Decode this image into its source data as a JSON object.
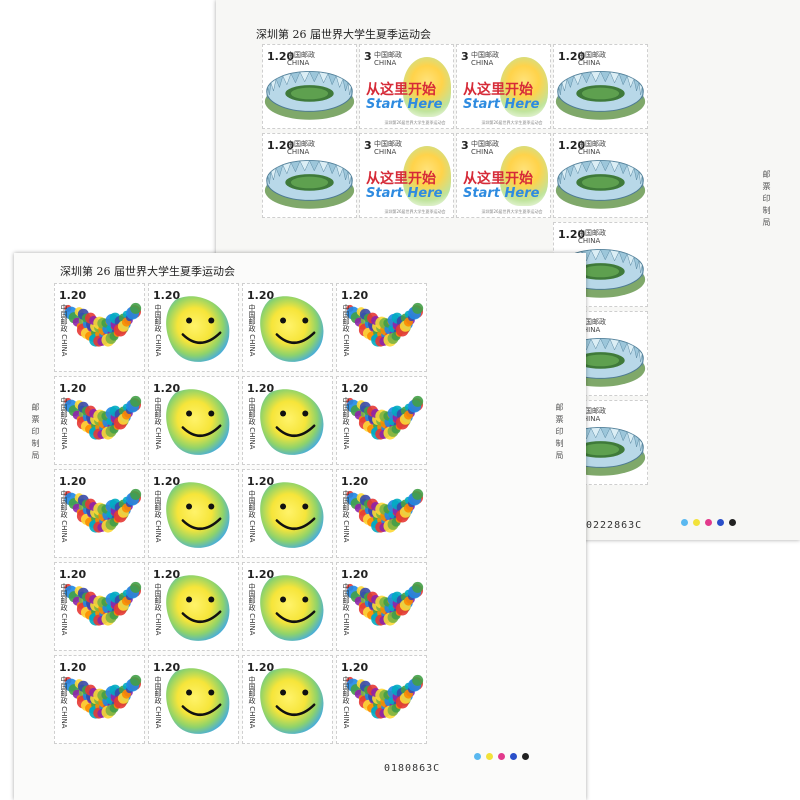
{
  "back_sheet": {
    "title": "深圳第 26 届世界大学生夏季运动会",
    "denominations": {
      "stadium": "1.20",
      "torch": "3"
    },
    "post_label": "中国邮政",
    "country": "CHINA",
    "slogan_cn": "从这里开始",
    "slogan_en": "Start Here",
    "caption": "深圳第26届世界大学生夏季运动会",
    "seal_text": "邮票印制局",
    "serial": "0222863C",
    "rows": [
      [
        "stadium",
        "torch",
        "torch",
        "stadium"
      ],
      [
        "stadium",
        "torch",
        "torch",
        "stadium"
      ],
      [
        "empty",
        "empty",
        "empty",
        "stadium"
      ],
      [
        "empty",
        "empty",
        "empty",
        "stadium"
      ],
      [
        "empty",
        "empty",
        "empty",
        "stadium"
      ]
    ]
  },
  "front_sheet": {
    "title": "深圳第 26 届世界大学生夏季运动会",
    "denomination": "1.20",
    "post_label": "中国邮政",
    "country": "CHINA",
    "seal_text": "邮票印制局",
    "serial": "0180863C",
    "rows": [
      [
        "arc",
        "smiley",
        "smiley",
        "arc"
      ],
      [
        "arc",
        "smiley",
        "smiley",
        "arc"
      ],
      [
        "arc",
        "smiley",
        "smiley",
        "arc"
      ],
      [
        "arc",
        "smiley",
        "smiley",
        "arc"
      ],
      [
        "arc",
        "smiley",
        "smiley",
        "arc"
      ]
    ]
  },
  "color_registration": [
    "#5ab8f0",
    "#f2e23a",
    "#e23a8c",
    "#2a4fc9",
    "#222222"
  ]
}
